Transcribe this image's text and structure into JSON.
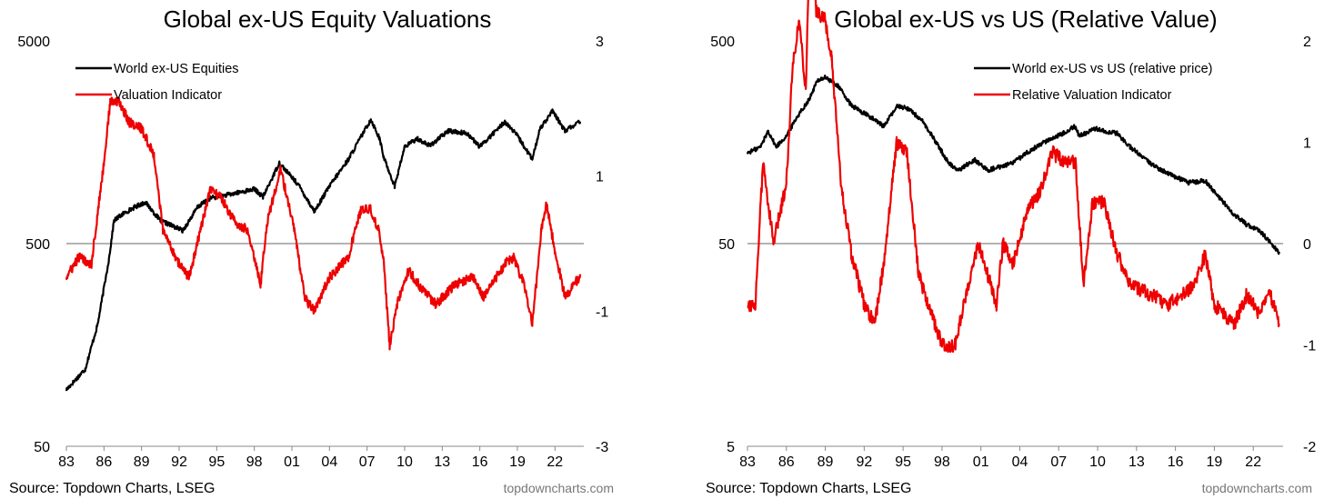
{
  "chart_data": [
    {
      "type": "line",
      "title": "Global ex-US Equity Valuations",
      "xlabel": "",
      "x_ticks": [
        "83",
        "86",
        "89",
        "92",
        "95",
        "98",
        "01",
        "04",
        "07",
        "10",
        "13",
        "16",
        "19",
        "22"
      ],
      "left_axis": {
        "scale": "log",
        "range": [
          50,
          5000
        ],
        "ticks": [
          "50",
          "500",
          "5000"
        ]
      },
      "right_axis": {
        "scale": "linear",
        "range": [
          -3,
          3
        ],
        "ticks": [
          "-3",
          "-1",
          "1",
          "3"
        ]
      },
      "reference_line": 0,
      "legend_position": "top-left",
      "series": [
        {
          "name": "World ex-US Equities",
          "axis": "left",
          "color": "#000000",
          "points": [
            [
              1983.0,
              95
            ],
            [
              1984.5,
              120
            ],
            [
              1985.5,
              200
            ],
            [
              1986.4,
              420
            ],
            [
              1986.8,
              650
            ],
            [
              1987.5,
              700
            ],
            [
              1988.5,
              760
            ],
            [
              1989.3,
              800
            ],
            [
              1990.5,
              650
            ],
            [
              1992.3,
              580
            ],
            [
              1993.5,
              760
            ],
            [
              1994.5,
              840
            ],
            [
              1995.5,
              860
            ],
            [
              1997.0,
              900
            ],
            [
              1998.0,
              930
            ],
            [
              1998.7,
              850
            ],
            [
              2000.0,
              1250
            ],
            [
              2001.5,
              980
            ],
            [
              2002.8,
              720
            ],
            [
              2004.0,
              960
            ],
            [
              2005.5,
              1300
            ],
            [
              2007.3,
              2050
            ],
            [
              2008.0,
              1650
            ],
            [
              2008.3,
              1350
            ],
            [
              2009.2,
              960
            ],
            [
              2010.0,
              1500
            ],
            [
              2011.0,
              1650
            ],
            [
              2012.0,
              1520
            ],
            [
              2013.5,
              1800
            ],
            [
              2015.0,
              1750
            ],
            [
              2016.0,
              1500
            ],
            [
              2018.0,
              2000
            ],
            [
              2019.0,
              1700
            ],
            [
              2020.2,
              1300
            ],
            [
              2020.8,
              1850
            ],
            [
              2021.8,
              2250
            ],
            [
              2022.8,
              1800
            ],
            [
              2024.0,
              2000
            ]
          ]
        },
        {
          "name": "Valuation Indicator",
          "axis": "right",
          "color": "#ee0000",
          "points": [
            [
              1983.0,
              -0.5
            ],
            [
              1984.0,
              -0.2
            ],
            [
              1985.0,
              -0.3
            ],
            [
              1986.0,
              1.2
            ],
            [
              1986.5,
              2.1
            ],
            [
              1987.2,
              2.1
            ],
            [
              1988.0,
              1.8
            ],
            [
              1989.0,
              1.7
            ],
            [
              1990.0,
              1.3
            ],
            [
              1990.7,
              0.2
            ],
            [
              1992.0,
              -0.3
            ],
            [
              1992.8,
              -0.5
            ],
            [
              1993.7,
              0.2
            ],
            [
              1994.5,
              0.8
            ],
            [
              1995.3,
              0.7
            ],
            [
              1996.5,
              0.3
            ],
            [
              1997.5,
              0.2
            ],
            [
              1998.5,
              -0.6
            ],
            [
              1999.0,
              0.3
            ],
            [
              2000.1,
              1.1
            ],
            [
              2001.2,
              0.2
            ],
            [
              2002.0,
              -0.8
            ],
            [
              2002.8,
              -1.0
            ],
            [
              2004.0,
              -0.5
            ],
            [
              2005.5,
              -0.2
            ],
            [
              2006.5,
              0.5
            ],
            [
              2007.3,
              0.5
            ],
            [
              2007.9,
              0.2
            ],
            [
              2008.3,
              -0.2
            ],
            [
              2008.8,
              -1.5
            ],
            [
              2009.4,
              -0.9
            ],
            [
              2010.3,
              -0.4
            ],
            [
              2011.5,
              -0.7
            ],
            [
              2012.5,
              -0.9
            ],
            [
              2014.0,
              -0.6
            ],
            [
              2015.5,
              -0.5
            ],
            [
              2016.3,
              -0.8
            ],
            [
              2018.0,
              -0.3
            ],
            [
              2018.7,
              -0.2
            ],
            [
              2019.5,
              -0.6
            ],
            [
              2020.2,
              -1.2
            ],
            [
              2020.9,
              0.2
            ],
            [
              2021.3,
              0.6
            ],
            [
              2022.0,
              -0.1
            ],
            [
              2022.8,
              -0.8
            ],
            [
              2023.5,
              -0.6
            ],
            [
              2024.0,
              -0.5
            ]
          ]
        }
      ],
      "source": "Source: Topdown Charts, LSEG",
      "brand": "topdowncharts.com"
    },
    {
      "type": "line",
      "title": "Global ex-US vs US (Relative Value)",
      "xlabel": "",
      "x_ticks": [
        "83",
        "86",
        "89",
        "92",
        "95",
        "98",
        "01",
        "04",
        "07",
        "10",
        "13",
        "16",
        "19",
        "22"
      ],
      "left_axis": {
        "scale": "log",
        "range": [
          5,
          500
        ],
        "ticks": [
          "5",
          "50",
          "500"
        ]
      },
      "right_axis": {
        "scale": "linear",
        "range": [
          -2,
          2
        ],
        "ticks": [
          "-2",
          "-1",
          "0",
          "1",
          "2"
        ]
      },
      "reference_line": 0,
      "legend_position": "top-right",
      "series": [
        {
          "name": "World ex-US vs US (relative price)",
          "axis": "left",
          "color": "#000000",
          "points": [
            [
              1983.0,
              140
            ],
            [
              1984.0,
              150
            ],
            [
              1984.6,
              180
            ],
            [
              1985.2,
              150
            ],
            [
              1986.0,
              170
            ],
            [
              1986.8,
              210
            ],
            [
              1987.8,
              260
            ],
            [
              1988.4,
              320
            ],
            [
              1989.0,
              330
            ],
            [
              1990.0,
              300
            ],
            [
              1991.0,
              240
            ],
            [
              1992.5,
              210
            ],
            [
              1993.5,
              190
            ],
            [
              1994.6,
              240
            ],
            [
              1995.5,
              230
            ],
            [
              1996.5,
              200
            ],
            [
              1997.5,
              160
            ],
            [
              1998.5,
              125
            ],
            [
              1999.3,
              115
            ],
            [
              2000.5,
              130
            ],
            [
              2001.5,
              115
            ],
            [
              2002.5,
              120
            ],
            [
              2003.5,
              125
            ],
            [
              2004.5,
              140
            ],
            [
              2006.0,
              160
            ],
            [
              2007.3,
              175
            ],
            [
              2008.2,
              190
            ],
            [
              2008.6,
              170
            ],
            [
              2009.8,
              185
            ],
            [
              2010.5,
              180
            ],
            [
              2011.5,
              175
            ],
            [
              2012.5,
              150
            ],
            [
              2014.0,
              125
            ],
            [
              2015.5,
              110
            ],
            [
              2017.0,
              100
            ],
            [
              2018.3,
              102
            ],
            [
              2019.0,
              90
            ],
            [
              2020.5,
              70
            ],
            [
              2021.5,
              62
            ],
            [
              2022.5,
              58
            ],
            [
              2024.0,
              45
            ]
          ]
        },
        {
          "name": "Relative Valuation Indicator",
          "axis": "right",
          "color": "#ee0000",
          "points": [
            [
              1983.0,
              -0.6
            ],
            [
              1983.6,
              -0.6
            ],
            [
              1984.2,
              0.8
            ],
            [
              1985.0,
              0.0
            ],
            [
              1986.0,
              0.6
            ],
            [
              1986.5,
              1.8
            ],
            [
              1987.0,
              2.2
            ],
            [
              1987.5,
              1.5
            ],
            [
              1987.9,
              3.6
            ],
            [
              1988.3,
              2.3
            ],
            [
              1989.0,
              2.2
            ],
            [
              1989.5,
              1.8
            ],
            [
              1990.2,
              0.6
            ],
            [
              1991.0,
              -0.1
            ],
            [
              1992.0,
              -0.6
            ],
            [
              1992.8,
              -0.8
            ],
            [
              1993.5,
              -0.2
            ],
            [
              1994.5,
              1.0
            ],
            [
              1995.3,
              0.9
            ],
            [
              1996.2,
              -0.3
            ],
            [
              1997.2,
              -0.7
            ],
            [
              1998.0,
              -1.0
            ],
            [
              1999.0,
              -1.0
            ],
            [
              2000.2,
              -0.3
            ],
            [
              2000.8,
              0.0
            ],
            [
              2001.5,
              -0.3
            ],
            [
              2002.2,
              -0.6
            ],
            [
              2002.7,
              0.0
            ],
            [
              2003.5,
              -0.2
            ],
            [
              2004.5,
              0.3
            ],
            [
              2005.5,
              0.5
            ],
            [
              2006.5,
              0.9
            ],
            [
              2007.5,
              0.8
            ],
            [
              2008.3,
              0.8
            ],
            [
              2008.9,
              -0.4
            ],
            [
              2009.6,
              0.4
            ],
            [
              2010.5,
              0.4
            ],
            [
              2011.5,
              -0.1
            ],
            [
              2012.5,
              -0.4
            ],
            [
              2014.0,
              -0.5
            ],
            [
              2015.5,
              -0.6
            ],
            [
              2016.5,
              -0.5
            ],
            [
              2017.5,
              -0.4
            ],
            [
              2018.3,
              -0.1
            ],
            [
              2019.0,
              -0.6
            ],
            [
              2020.5,
              -0.8
            ],
            [
              2021.5,
              -0.5
            ],
            [
              2022.5,
              -0.7
            ],
            [
              2023.3,
              -0.5
            ],
            [
              2024.0,
              -0.8
            ]
          ]
        }
      ],
      "source": "Source: Topdown Charts, LSEG",
      "brand": "topdowncharts.com"
    }
  ]
}
